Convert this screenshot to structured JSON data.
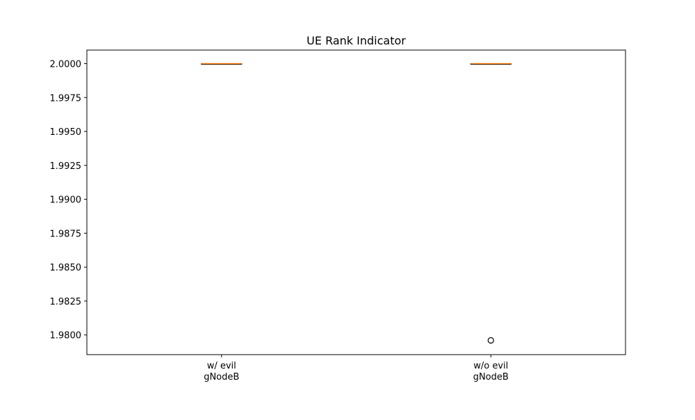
{
  "chart_data": {
    "type": "box",
    "title": "UE Rank Indicator",
    "xlabel": "",
    "ylabel": "",
    "ylim": [
      1.97855,
      2.001
    ],
    "yticks": [
      "1.9800",
      "1.9825",
      "1.9850",
      "1.9875",
      "1.9900",
      "1.9925",
      "1.9950",
      "1.9975",
      "2.0000"
    ],
    "grid": false,
    "categories": [
      [
        "w/ evil",
        "gNodeB"
      ],
      [
        "w/o evil",
        "gNodeB"
      ]
    ],
    "boxes": [
      {
        "q1": 2.0,
        "median": 2.0,
        "q3": 2.0,
        "whisker_low": 2.0,
        "whisker_high": 2.0,
        "fliers": []
      },
      {
        "q1": 2.0,
        "median": 2.0,
        "q3": 2.0,
        "whisker_low": 2.0,
        "whisker_high": 2.0,
        "fliers": [
          1.9796
        ]
      }
    ],
    "colors": {
      "box": "#000000",
      "median": "#ff7f0e",
      "flier": "#000000"
    }
  }
}
